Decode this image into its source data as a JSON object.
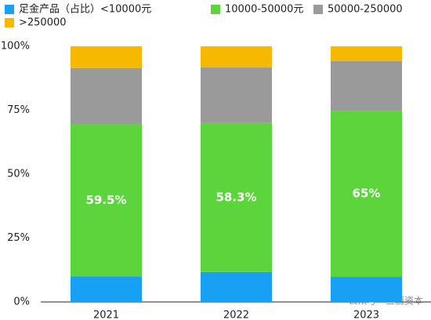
{
  "chart_data": {
    "type": "stacked_bar",
    "categories": [
      "2021",
      "2022",
      "2023"
    ],
    "series": [
      {
        "name": "足金产品（占比）<10000元",
        "color": "#18a0f4",
        "values": [
          10,
          11.7,
          9.8
        ]
      },
      {
        "name": "10000-50000元",
        "color": "#5cd53d",
        "values": [
          59.5,
          58.3,
          65
        ],
        "value_labels": [
          "59.5%",
          "58.3%",
          "65%"
        ]
      },
      {
        "name": "50000-250000",
        "color": "#9a9a9a",
        "values": [
          22,
          21.7,
          19.4
        ]
      },
      {
        "name": ">250000",
        "color": "#f6b800",
        "values": [
          8.5,
          8.3,
          5.8
        ]
      }
    ],
    "ylim": [
      0,
      100
    ],
    "yticks": [
      {
        "value": 0,
        "label": "0%"
      },
      {
        "value": 25,
        "label": "25%"
      },
      {
        "value": 50,
        "label": "50%"
      },
      {
        "value": 75,
        "label": "75%"
      },
      {
        "value": 100,
        "label": "100%"
      }
    ],
    "watermark": "公众号 · 三酉资本"
  }
}
